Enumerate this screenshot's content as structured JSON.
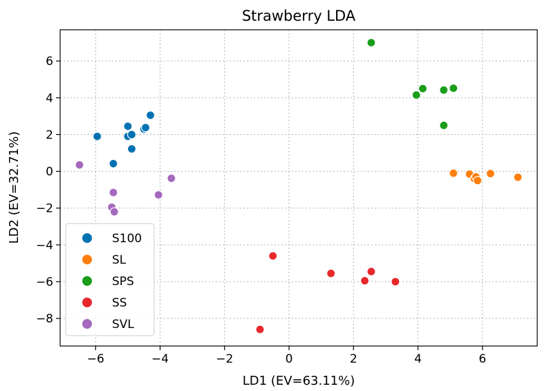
{
  "chart_data": {
    "type": "scatter",
    "title": "Strawberry LDA",
    "xlabel": "LD1 (EV=63.11%)",
    "ylabel": "LD2 (EV=32.71%)",
    "xlim": [
      -7.1,
      7.7
    ],
    "ylim": [
      -9.5,
      7.7
    ],
    "xticks": [
      -6,
      -4,
      -2,
      0,
      2,
      4,
      6
    ],
    "yticks": [
      -8,
      -6,
      -4,
      -2,
      0,
      2,
      4,
      6
    ],
    "xtick_labels": [
      "−6",
      "−4",
      "−2",
      "0",
      "2",
      "4",
      "6"
    ],
    "ytick_labels": [
      "−8",
      "−6",
      "−4",
      "−2",
      "0",
      "2",
      "4",
      "6"
    ],
    "grid": true,
    "legend_position": "lower-left",
    "series": [
      {
        "name": "S100",
        "color": "#0072b2",
        "points": [
          [
            -5.95,
            1.9
          ],
          [
            -5.0,
            2.45
          ],
          [
            -5.0,
            1.9
          ],
          [
            -4.88,
            2.0
          ],
          [
            -4.88,
            1.22
          ],
          [
            -4.5,
            2.3
          ],
          [
            -4.45,
            2.38
          ],
          [
            -4.3,
            3.05
          ],
          [
            -5.45,
            0.42
          ]
        ]
      },
      {
        "name": "SL",
        "color": "#ff7f0e",
        "points": [
          [
            5.1,
            -0.1
          ],
          [
            5.6,
            -0.15
          ],
          [
            5.75,
            -0.4
          ],
          [
            5.8,
            -0.3
          ],
          [
            5.85,
            -0.5
          ],
          [
            6.25,
            -0.12
          ],
          [
            7.1,
            -0.32
          ]
        ]
      },
      {
        "name": "SPS",
        "color": "#1a9e1a",
        "points": [
          [
            2.55,
            7.0
          ],
          [
            3.95,
            4.15
          ],
          [
            4.15,
            4.5
          ],
          [
            4.8,
            4.42
          ],
          [
            5.1,
            4.52
          ],
          [
            4.8,
            2.5
          ]
        ]
      },
      {
        "name": "SS",
        "color": "#e8282b",
        "points": [
          [
            -0.5,
            -4.6
          ],
          [
            1.3,
            -5.55
          ],
          [
            2.35,
            -5.95
          ],
          [
            2.55,
            -5.45
          ],
          [
            3.3,
            -6.0
          ],
          [
            -0.9,
            -8.6
          ]
        ]
      },
      {
        "name": "SVL",
        "color": "#a569bd",
        "points": [
          [
            -6.5,
            0.35
          ],
          [
            -5.45,
            -1.15
          ],
          [
            -5.5,
            -1.95
          ],
          [
            -5.42,
            -2.2
          ],
          [
            -4.05,
            -1.28
          ],
          [
            -3.65,
            -0.38
          ]
        ]
      }
    ]
  }
}
